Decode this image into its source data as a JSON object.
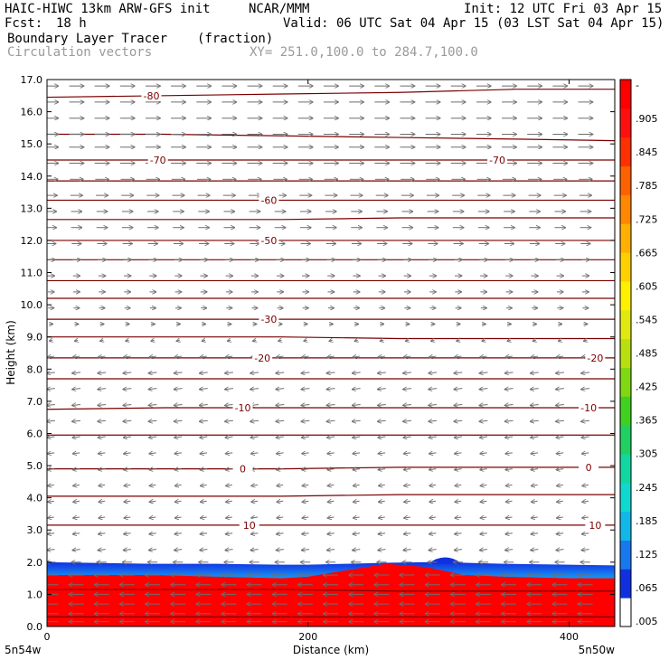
{
  "header": {
    "title": "HAIC-HIWC 13km ARW-GFS init",
    "org": "NCAR/MMM",
    "init": "Init: 12 UTC Fri 03 Apr 15",
    "fcst_label": "Fcst:",
    "fcst_value": "18 h",
    "valid": "Valid: 06 UTC Sat 04 Apr 15 (03 LST Sat 04 Apr 15)",
    "field": "Boundary Layer Tracer",
    "field_units": "(fraction)",
    "vectors_label": "Circulation vectors",
    "xy_label": "XY= 251.0,100.0 to 284.7,100.0"
  },
  "chart_data": {
    "type": "heatmap",
    "xlabel": "Distance (km)",
    "ylabel": "Height (km)",
    "xlim": [
      0,
      435
    ],
    "ylim": [
      0,
      17
    ],
    "x_ticks": [
      {
        "value": 0,
        "label": "0"
      },
      {
        "value": 200,
        "label": "200"
      },
      {
        "value": 400,
        "label": "400"
      }
    ],
    "x_end_labels": {
      "left": "5n54w",
      "right": "5n50w"
    },
    "y_ticks": [
      {
        "value": 0,
        "label": "0.0"
      },
      {
        "value": 1,
        "label": "1.0"
      },
      {
        "value": 2,
        "label": "2.0"
      },
      {
        "value": 3,
        "label": "3.0"
      },
      {
        "value": 4,
        "label": "4.0"
      },
      {
        "value": 5,
        "label": "5.0"
      },
      {
        "value": 6,
        "label": "6.0"
      },
      {
        "value": 7,
        "label": "7.0"
      },
      {
        "value": 8,
        "label": "8.0"
      },
      {
        "value": 9,
        "label": "9.0"
      },
      {
        "value": 10,
        "label": "10.0"
      },
      {
        "value": 11,
        "label": "11.0"
      },
      {
        "value": 12,
        "label": "12.0"
      },
      {
        "value": 13,
        "label": "13.0"
      },
      {
        "value": 14,
        "label": "14.0"
      },
      {
        "value": 15,
        "label": "15.0"
      },
      {
        "value": 16,
        "label": "16.0"
      },
      {
        "value": 17,
        "label": "17.0"
      }
    ],
    "colorbar_labels": [
      ".005",
      ".065",
      ".125",
      ".185",
      ".245",
      ".305",
      ".365",
      ".425",
      ".485",
      ".545",
      ".605",
      ".665",
      ".725",
      ".785",
      ".845",
      ".905",
      "-"
    ],
    "colorbar_colors": [
      "#ffffff",
      "#1030e0",
      "#1878f0",
      "#10b8e8",
      "#10d8d0",
      "#10d8a0",
      "#20d060",
      "#40d020",
      "#80d810",
      "#b8e010",
      "#e0e810",
      "#fff000",
      "#ffd000",
      "#ffb000",
      "#ff8800",
      "#ff6000",
      "#ff3000",
      "#ff1010",
      "#ff0000"
    ],
    "tracer_profile": {
      "x": [
        0,
        30,
        80,
        130,
        180,
        200,
        230,
        260,
        290,
        320,
        350,
        400,
        435
      ],
      "mixed_top_km": [
        1.6,
        1.6,
        1.6,
        1.55,
        1.5,
        1.55,
        1.75,
        1.95,
        1.85,
        1.6,
        1.55,
        1.5,
        1.5
      ],
      "bl_top_km": [
        2.0,
        1.98,
        1.95,
        1.95,
        1.92,
        1.92,
        1.95,
        1.98,
        2.0,
        1.98,
        1.95,
        1.92,
        1.9
      ]
    },
    "terrain_bump": {
      "x_start": 292,
      "x_end": 318,
      "peak_km": 2.18
    },
    "temperature_contours": [
      {
        "value": -80,
        "label": "-80",
        "y": [
          16.45,
          16.5,
          16.55,
          16.6,
          16.7,
          16.7
        ],
        "label_x": [
          80
        ]
      },
      {
        "value": -75,
        "label": "",
        "y": [
          15.3,
          15.3,
          15.25,
          15.2,
          15.15,
          15.1
        ],
        "label_x": []
      },
      {
        "value": -70,
        "label": "-70",
        "y": [
          14.5,
          14.5,
          14.5,
          14.5,
          14.5,
          14.5
        ],
        "label_x": [
          85,
          345
        ]
      },
      {
        "value": -65,
        "label": "",
        "y": [
          13.85,
          13.85,
          13.85,
          13.85,
          13.85,
          13.85
        ],
        "label_x": []
      },
      {
        "value": -60,
        "label": "-60",
        "y": [
          13.25,
          13.25,
          13.25,
          13.25,
          13.25,
          13.25
        ],
        "label_x": [
          170
        ]
      },
      {
        "value": -55,
        "label": "",
        "y": [
          12.65,
          12.65,
          12.65,
          12.7,
          12.7,
          12.7
        ],
        "label_x": []
      },
      {
        "value": -50,
        "label": "-50",
        "y": [
          12.0,
          12.0,
          12.0,
          12.0,
          12.0,
          12.0
        ],
        "label_x": [
          170
        ]
      },
      {
        "value": -45,
        "label": "",
        "y": [
          11.4,
          11.4,
          11.4,
          11.4,
          11.4,
          11.4
        ],
        "label_x": []
      },
      {
        "value": -40,
        "label": "",
        "y": [
          10.75,
          10.75,
          10.75,
          10.75,
          10.75,
          10.75
        ],
        "label_x": []
      },
      {
        "value": -35,
        "label": "",
        "y": [
          10.2,
          10.2,
          10.2,
          10.2,
          10.2,
          10.2
        ],
        "label_x": []
      },
      {
        "value": -30,
        "label": "-30",
        "y": [
          9.55,
          9.55,
          9.55,
          9.55,
          9.55,
          9.55
        ],
        "label_x": [
          170
        ]
      },
      {
        "value": -25,
        "label": "",
        "y": [
          9.0,
          9.0,
          9.0,
          8.95,
          8.95,
          8.95
        ],
        "label_x": []
      },
      {
        "value": -20,
        "label": "-20",
        "y": [
          8.35,
          8.35,
          8.35,
          8.35,
          8.35,
          8.35
        ],
        "label_x": [
          165,
          420
        ]
      },
      {
        "value": -15,
        "label": "",
        "y": [
          7.7,
          7.7,
          7.7,
          7.7,
          7.7,
          7.7
        ],
        "label_x": []
      },
      {
        "value": -10,
        "label": "-10",
        "y": [
          6.75,
          6.8,
          6.8,
          6.8,
          6.8,
          6.8
        ],
        "label_x": [
          150,
          415
        ]
      },
      {
        "value": -5,
        "label": "",
        "y": [
          5.95,
          5.95,
          5.95,
          5.95,
          5.95,
          5.95
        ],
        "label_x": []
      },
      {
        "value": 0,
        "label": "0",
        "y": [
          4.9,
          4.9,
          4.9,
          4.95,
          4.95,
          4.95
        ],
        "label_x": [
          150,
          415
        ]
      },
      {
        "value": 5,
        "label": "",
        "y": [
          4.05,
          4.05,
          4.05,
          4.1,
          4.1,
          4.1
        ],
        "label_x": []
      },
      {
        "value": 10,
        "label": "10",
        "y": [
          3.15,
          3.15,
          3.15,
          3.15,
          3.15,
          3.15
        ],
        "label_x": [
          155,
          420
        ]
      },
      {
        "value": 15,
        "label": "",
        "y": [
          1.15,
          1.15,
          1.15,
          1.1,
          1.1,
          1.1
        ],
        "label_x": []
      },
      {
        "value": 20,
        "label": "",
        "y": [
          0.3,
          0.3,
          0.3,
          0.3,
          0.3,
          0.3
        ],
        "label_x": []
      }
    ],
    "contour_x": [
      0,
      90,
      180,
      270,
      360,
      435
    ],
    "wind_vectors": {
      "rows_km": [
        16.8,
        16.3,
        15.8,
        15.3,
        14.9,
        14.4,
        13.9,
        13.4,
        12.9,
        12.4,
        11.9,
        11.4,
        10.9,
        10.4,
        9.9,
        9.4,
        8.9,
        8.4,
        7.9,
        7.4,
        6.9,
        6.4,
        5.9,
        5.4,
        4.9,
        4.4,
        3.9,
        3.4,
        2.9,
        2.4,
        2.0,
        1.6,
        1.3,
        1.0,
        0.7,
        0.4,
        0.15
      ],
      "u": [
        1.0,
        1.0,
        1.0,
        1.0,
        1.0,
        1.0,
        0.9,
        0.8,
        0.7,
        0.7,
        0.6,
        0.5,
        0.4,
        0.35,
        0.3,
        0.15,
        -0.1,
        -0.4,
        -0.5,
        -0.5,
        -0.5,
        -0.5,
        -0.45,
        -0.4,
        -0.4,
        -0.35,
        -0.35,
        -0.35,
        -0.4,
        -0.45,
        -0.6,
        -1.0,
        -1.0,
        -1.0,
        -1.0,
        -1.0,
        -1.0
      ]
    }
  }
}
